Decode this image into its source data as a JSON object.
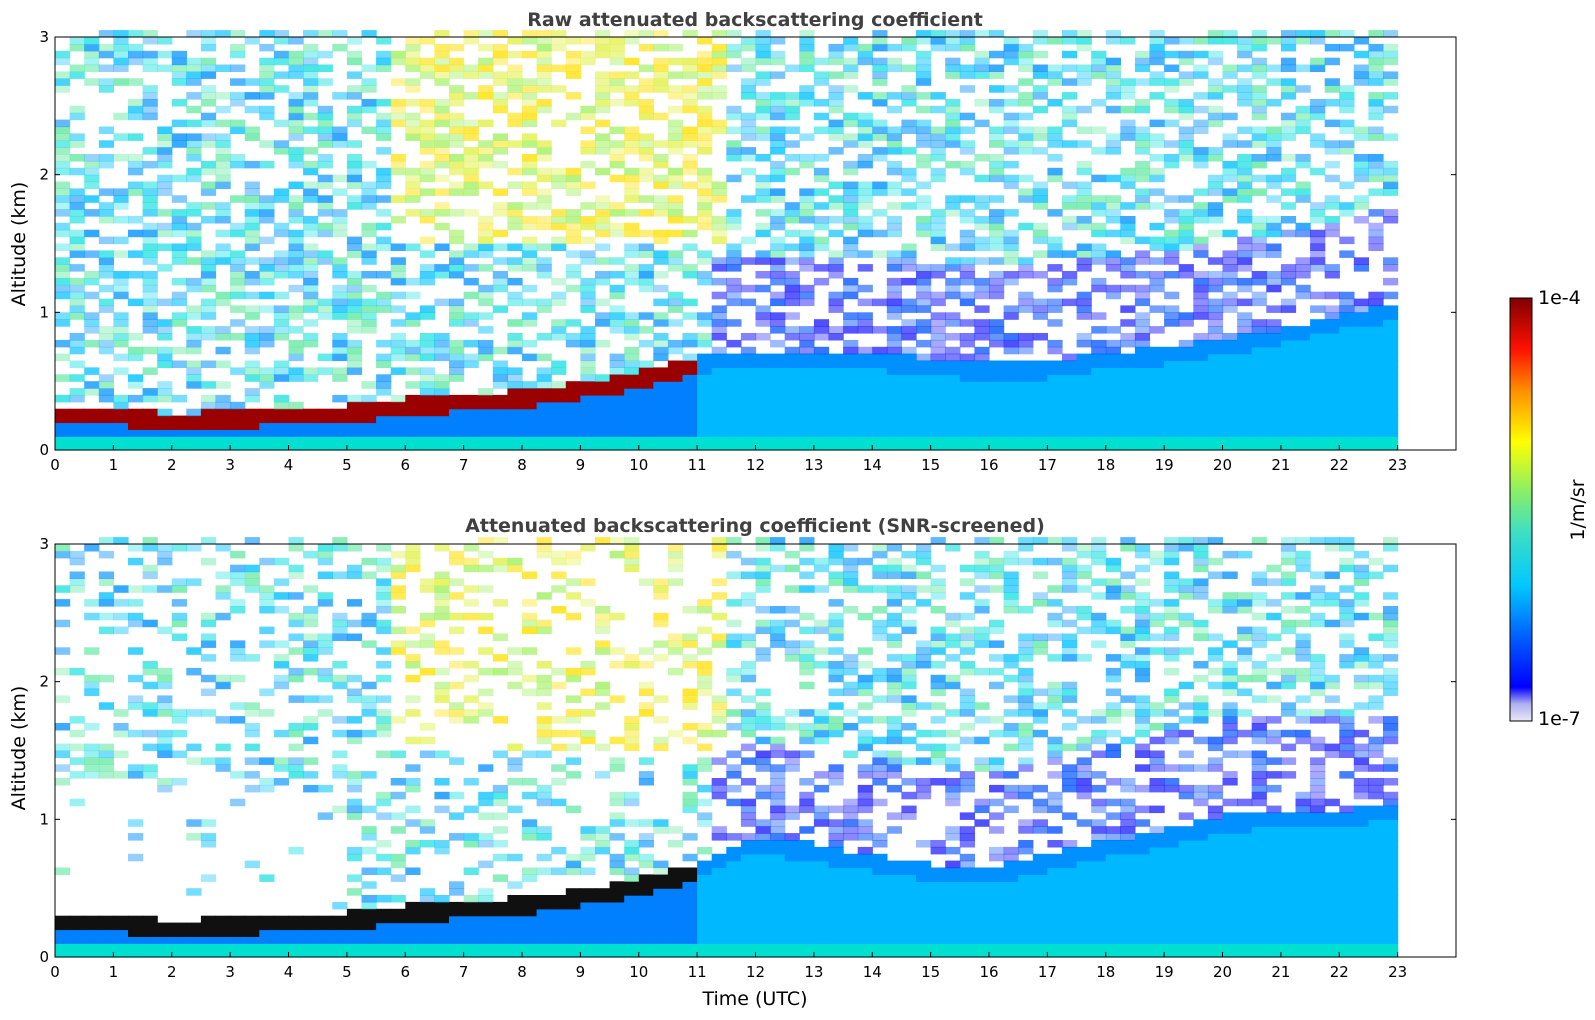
{
  "chart_data": [
    {
      "type": "heatmap",
      "title": "Raw attenuated backscattering coefficient",
      "xlabel": "",
      "ylabel": "Altitude (km)",
      "xlim": [
        0,
        24
      ],
      "ylim": [
        0,
        3
      ],
      "xticks": [
        "0",
        "1",
        "2",
        "3",
        "4",
        "5",
        "6",
        "7",
        "8",
        "9",
        "10",
        "11",
        "12",
        "13",
        "14",
        "15",
        "16",
        "17",
        "18",
        "19",
        "20",
        "21",
        "22",
        "23"
      ],
      "yticks": [
        "0",
        "1",
        "2",
        "3"
      ],
      "data_end_time": 23,
      "screening": "raw",
      "layer_top_km": [
        {
          "t": 0,
          "z": 0.3
        },
        {
          "t": 1,
          "z": 0.28
        },
        {
          "t": 2,
          "z": 0.24
        },
        {
          "t": 3,
          "z": 0.26
        },
        {
          "t": 4,
          "z": 0.28
        },
        {
          "t": 5,
          "z": 0.3
        },
        {
          "t": 6,
          "z": 0.35
        },
        {
          "t": 7,
          "z": 0.38
        },
        {
          "t": 8,
          "z": 0.41
        },
        {
          "t": 9,
          "z": 0.46
        },
        {
          "t": 10,
          "z": 0.54
        },
        {
          "t": 11,
          "z": 0.66
        },
        {
          "t": 12,
          "z": 0.7
        },
        {
          "t": 13,
          "z": 0.7
        },
        {
          "t": 14,
          "z": 0.68
        },
        {
          "t": 15,
          "z": 0.64
        },
        {
          "t": 16,
          "z": 0.6
        },
        {
          "t": 17,
          "z": 0.62
        },
        {
          "t": 18,
          "z": 0.68
        },
        {
          "t": 19,
          "z": 0.72
        },
        {
          "t": 20,
          "z": 0.78
        },
        {
          "t": 21,
          "z": 0.86
        },
        {
          "t": 22,
          "z": 0.96
        },
        {
          "t": 23,
          "z": 1.05
        }
      ]
    },
    {
      "type": "heatmap",
      "title": "Attenuated backscattering coefficient (SNR-screened)",
      "xlabel": "Time (UTC)",
      "ylabel": "Altitude (km)",
      "xlim": [
        0,
        24
      ],
      "ylim": [
        0,
        3
      ],
      "xticks": [
        "0",
        "1",
        "2",
        "3",
        "4",
        "5",
        "6",
        "7",
        "8",
        "9",
        "10",
        "11",
        "12",
        "13",
        "14",
        "15",
        "16",
        "17",
        "18",
        "19",
        "20",
        "21",
        "22",
        "23"
      ],
      "yticks": [
        "0",
        "1",
        "2",
        "3"
      ],
      "data_end_time": 23,
      "screening": "snr",
      "layer_top_km": [
        {
          "t": 0,
          "z": 0.3
        },
        {
          "t": 1,
          "z": 0.28
        },
        {
          "t": 2,
          "z": 0.24
        },
        {
          "t": 3,
          "z": 0.26
        },
        {
          "t": 4,
          "z": 0.28
        },
        {
          "t": 5,
          "z": 0.3
        },
        {
          "t": 6,
          "z": 0.35
        },
        {
          "t": 7,
          "z": 0.38
        },
        {
          "t": 8,
          "z": 0.41
        },
        {
          "t": 9,
          "z": 0.46
        },
        {
          "t": 10,
          "z": 0.54
        },
        {
          "t": 11,
          "z": 0.66
        },
        {
          "t": 12,
          "z": 0.85
        },
        {
          "t": 13,
          "z": 0.8
        },
        {
          "t": 14,
          "z": 0.72
        },
        {
          "t": 15,
          "z": 0.65
        },
        {
          "t": 16,
          "z": 0.62
        },
        {
          "t": 17,
          "z": 0.72
        },
        {
          "t": 18,
          "z": 0.82
        },
        {
          "t": 19,
          "z": 0.9
        },
        {
          "t": 20,
          "z": 1.0
        },
        {
          "t": 21,
          "z": 1.04
        },
        {
          "t": 22,
          "z": 1.04
        },
        {
          "t": 23,
          "z": 1.1
        }
      ]
    }
  ],
  "colorbar": {
    "max_label": "1e-4",
    "min_label": "1e-7",
    "unit": "1/m/sr",
    "scale": "log",
    "range": [
      1e-07,
      0.0001
    ],
    "colormap": [
      "#e8e8f8",
      "#0000ff",
      "#00c8ff",
      "#60e0a0",
      "#ffff00",
      "#ff8000",
      "#ff0000",
      "#800000"
    ]
  }
}
